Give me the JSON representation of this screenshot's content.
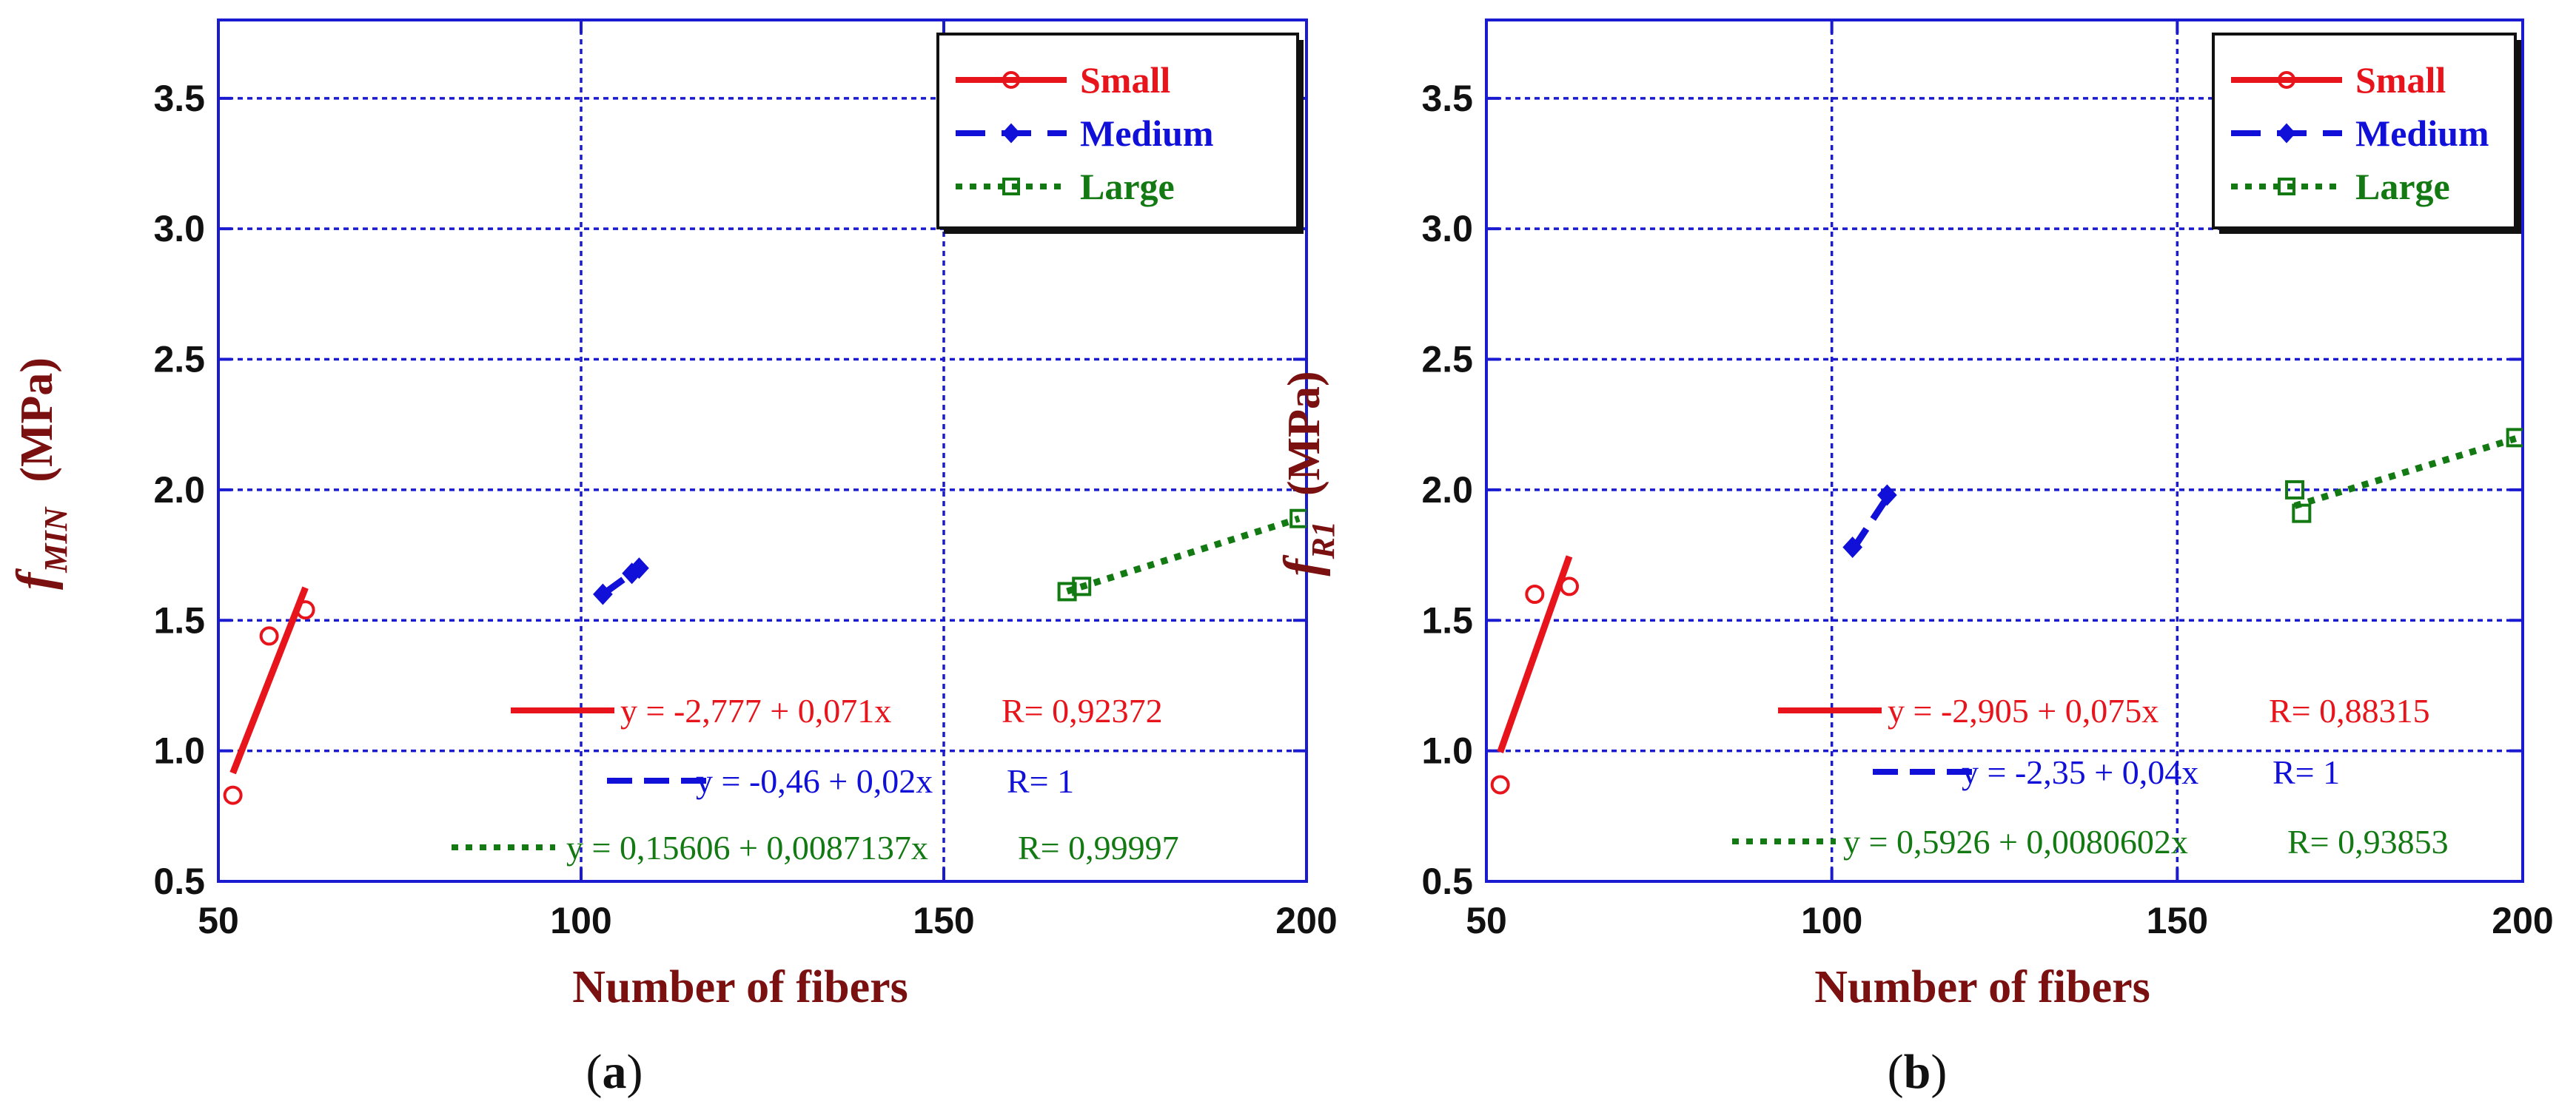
{
  "chart_data": [
    {
      "type": "scatter",
      "panel_label": "a",
      "xlabel": "Number of fibers",
      "ylabel": {
        "main": "f",
        "sub": "MIN",
        "unit": "(MPa)"
      },
      "xlim": [
        50,
        200
      ],
      "ylim": [
        0.5,
        3.8
      ],
      "xticks": [
        "50",
        "100",
        "150",
        "200"
      ],
      "yticks": [
        "0.5",
        "1.0",
        "1.5",
        "2.0",
        "2.5",
        "3.0",
        "3.5"
      ],
      "xtick_values": [
        50,
        100,
        150,
        200
      ],
      "ytick_values": [
        0.5,
        1.0,
        1.5,
        2.0,
        2.5,
        3.0,
        3.5
      ],
      "grid": true,
      "legend_position": "top-right",
      "series": [
        {
          "name": "Small",
          "color": "#e8141c",
          "marker": "circle",
          "line": "solid",
          "x": [
            52,
            57,
            62
          ],
          "y": [
            0.83,
            1.44,
            1.54
          ],
          "fit": {
            "intercept": -2.777,
            "slope": 0.071,
            "x_range": [
              52,
              62
            ],
            "equation": "y = -2,777 + 0,071x",
            "r": "R= 0,92372"
          }
        },
        {
          "name": "Medium",
          "color": "#1010d8",
          "marker": "diamond",
          "line": "dashed",
          "x": [
            103,
            107,
            108
          ],
          "y": [
            1.6,
            1.68,
            1.7
          ],
          "fit": {
            "intercept": -0.46,
            "slope": 0.02,
            "x_range": [
              103,
              108
            ],
            "equation": "y = -0,46 + 0,02x",
            "r": "R= 1"
          }
        },
        {
          "name": "Large",
          "color": "#137a13",
          "marker": "square",
          "line": "dotted",
          "x": [
            167,
            169,
            199
          ],
          "y": [
            1.61,
            1.63,
            1.89
          ],
          "fit": {
            "intercept": 0.15606,
            "slope": 0.0087137,
            "x_range": [
              167,
              199
            ],
            "equation": "y = 0,15606 + 0,0087137x",
            "r": "R= 0,99997"
          }
        }
      ]
    },
    {
      "type": "scatter",
      "panel_label": "b",
      "xlabel": "Number of fibers",
      "ylabel": {
        "main": "f",
        "sub": "R1",
        "unit": "(MPa)"
      },
      "xlim": [
        50,
        200
      ],
      "ylim": [
        0.5,
        3.8
      ],
      "xticks": [
        "50",
        "100",
        "150",
        "200"
      ],
      "yticks": [
        "0.5",
        "1.0",
        "1.5",
        "2.0",
        "2.5",
        "3.0",
        "3.5"
      ],
      "xtick_values": [
        50,
        100,
        150,
        200
      ],
      "ytick_values": [
        0.5,
        1.0,
        1.5,
        2.0,
        2.5,
        3.0,
        3.5
      ],
      "grid": true,
      "legend_position": "top-right",
      "series": [
        {
          "name": "Small",
          "color": "#e8141c",
          "marker": "circle",
          "line": "solid",
          "x": [
            52,
            57,
            62
          ],
          "y": [
            0.87,
            1.6,
            1.63
          ],
          "fit": {
            "intercept": -2.905,
            "slope": 0.075,
            "x_range": [
              52,
              62
            ],
            "equation": "y = -2,905 + 0,075x",
            "r": "R= 0,88315"
          }
        },
        {
          "name": "Medium",
          "color": "#1010d8",
          "marker": "diamond",
          "line": "dashed",
          "x": [
            103,
            108
          ],
          "y": [
            1.78,
            1.98
          ],
          "fit": {
            "intercept": -2.35,
            "slope": 0.04,
            "x_range": [
              103,
              108
            ],
            "equation": "y = -2,35 + 0,04x",
            "r": "R= 1"
          }
        },
        {
          "name": "Large",
          "color": "#137a13",
          "marker": "square",
          "line": "dotted",
          "x": [
            167,
            168,
            199
          ],
          "y": [
            2.0,
            1.91,
            2.2
          ],
          "fit": {
            "intercept": 0.5926,
            "slope": 0.0080602,
            "x_range": [
              167,
              199
            ],
            "equation": "y = 0,5926 + 0,0080602x",
            "r": "R= 0,93853"
          }
        }
      ]
    }
  ]
}
